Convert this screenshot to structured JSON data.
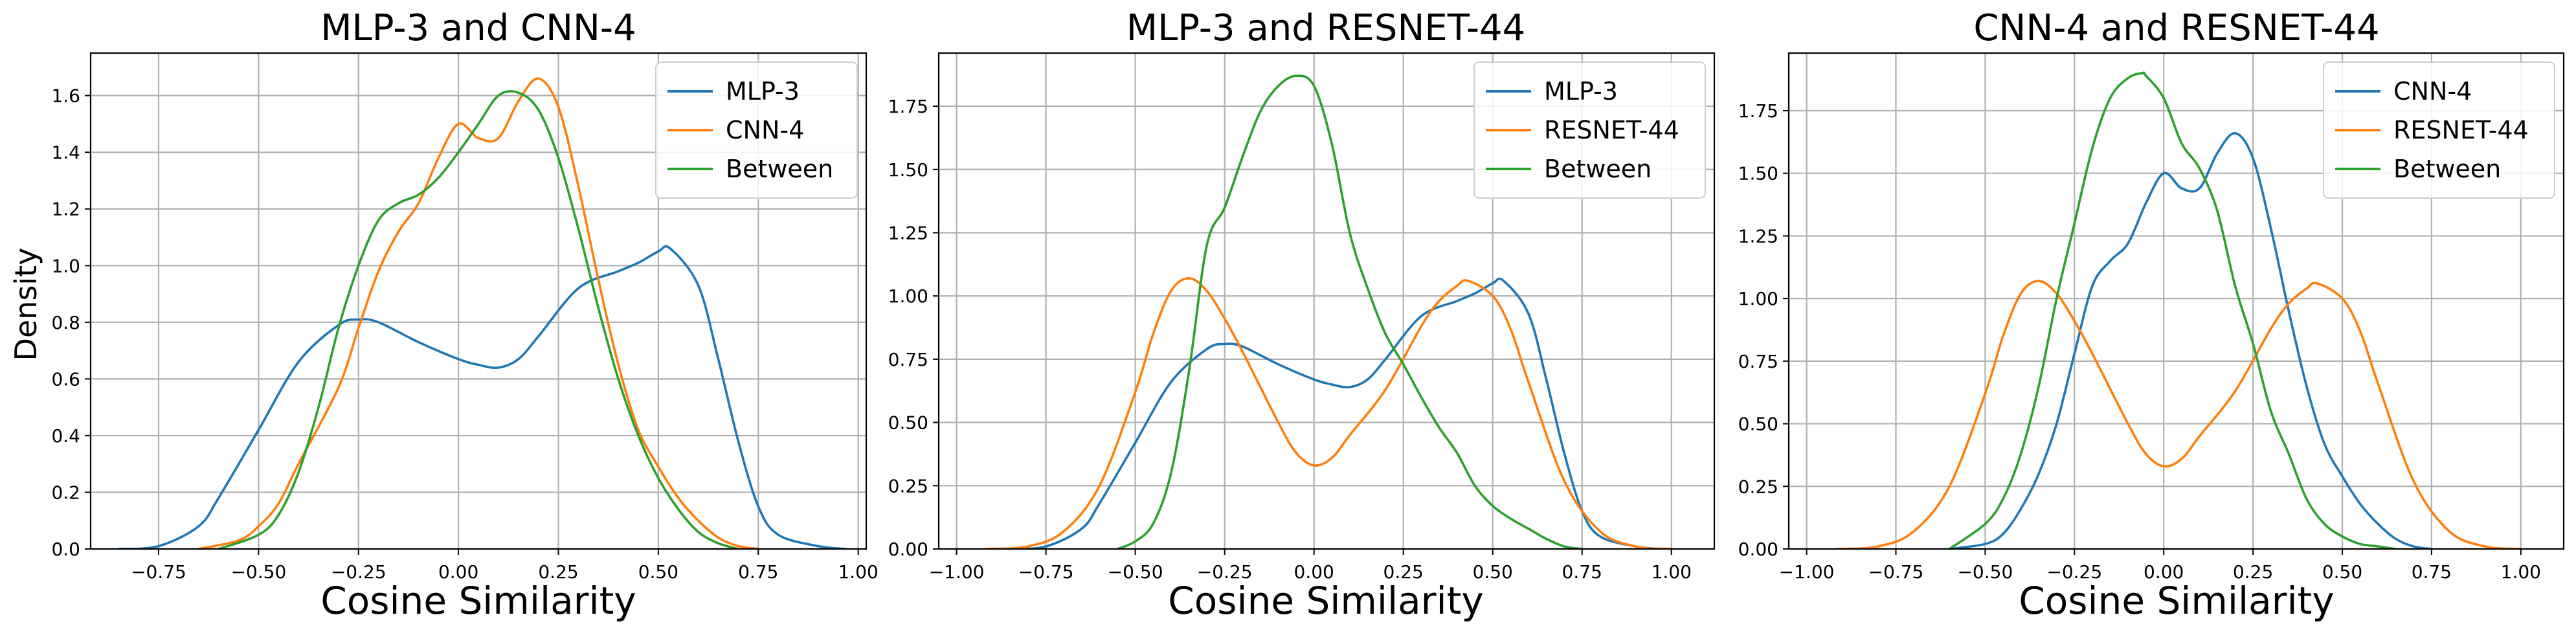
{
  "figure": {
    "ylabel": "Density",
    "xlabel": "Cosine Similarity"
  },
  "colors": {
    "blue": "#1f77b4",
    "orange": "#ff7f0e",
    "green": "#2ca02c",
    "grid": "#b0b0b0"
  },
  "chart_data": [
    {
      "type": "line",
      "title": "MLP-3 and CNN-4",
      "xlabel": "Cosine Similarity",
      "ylabel": "Density",
      "xlim": [
        -0.92,
        1.02
      ],
      "ylim": [
        0,
        1.75
      ],
      "xticks": [
        -0.75,
        -0.5,
        -0.25,
        0.0,
        0.25,
        0.5,
        0.75,
        1.0
      ],
      "xtick_labels": [
        "−0.75",
        "−0.50",
        "−0.25",
        "0.00",
        "0.25",
        "0.50",
        "0.75",
        "1.00"
      ],
      "yticks": [
        0,
        0.2,
        0.4,
        0.6,
        0.8,
        1.0,
        1.2,
        1.4,
        1.6
      ],
      "ytick_labels": [
        "0.0",
        "0.2",
        "0.4",
        "0.6",
        "0.8",
        "1.0",
        "1.2",
        "1.4",
        "1.6"
      ],
      "grid": true,
      "legend": "top-right",
      "series": [
        {
          "name": "MLP-3",
          "color": "#1f77b4",
          "x": [
            -0.85,
            -0.75,
            -0.65,
            -0.6,
            -0.5,
            -0.4,
            -0.3,
            -0.25,
            -0.2,
            -0.1,
            0.0,
            0.05,
            0.1,
            0.15,
            0.2,
            0.3,
            0.4,
            0.45,
            0.5,
            0.53,
            0.6,
            0.65,
            0.7,
            0.75,
            0.8,
            0.9,
            0.97
          ],
          "y": [
            0.0,
            0.01,
            0.08,
            0.18,
            0.42,
            0.66,
            0.79,
            0.81,
            0.8,
            0.73,
            0.67,
            0.65,
            0.64,
            0.67,
            0.75,
            0.92,
            0.98,
            1.01,
            1.05,
            1.06,
            0.93,
            0.67,
            0.38,
            0.15,
            0.05,
            0.01,
            0.0
          ]
        },
        {
          "name": "CNN-4",
          "color": "#ff7f0e",
          "x": [
            -0.65,
            -0.55,
            -0.5,
            -0.45,
            -0.4,
            -0.3,
            -0.25,
            -0.2,
            -0.15,
            -0.1,
            -0.05,
            0.0,
            0.05,
            0.1,
            0.15,
            0.2,
            0.25,
            0.3,
            0.35,
            0.4,
            0.45,
            0.5,
            0.55,
            0.6,
            0.65,
            0.7,
            0.75
          ],
          "y": [
            0.0,
            0.03,
            0.08,
            0.16,
            0.3,
            0.57,
            0.78,
            0.98,
            1.12,
            1.22,
            1.38,
            1.5,
            1.45,
            1.45,
            1.58,
            1.66,
            1.56,
            1.28,
            0.95,
            0.65,
            0.42,
            0.29,
            0.18,
            0.1,
            0.04,
            0.01,
            0.0
          ]
        },
        {
          "name": "Between",
          "color": "#2ca02c",
          "x": [
            -0.6,
            -0.5,
            -0.45,
            -0.4,
            -0.35,
            -0.3,
            -0.25,
            -0.2,
            -0.15,
            -0.1,
            -0.05,
            0.0,
            0.05,
            0.1,
            0.15,
            0.2,
            0.25,
            0.3,
            0.35,
            0.4,
            0.45,
            0.5,
            0.55,
            0.6,
            0.65,
            0.7
          ],
          "y": [
            0.0,
            0.05,
            0.12,
            0.27,
            0.5,
            0.78,
            1.0,
            1.16,
            1.22,
            1.25,
            1.31,
            1.4,
            1.5,
            1.6,
            1.61,
            1.55,
            1.38,
            1.13,
            0.85,
            0.6,
            0.4,
            0.25,
            0.14,
            0.06,
            0.02,
            0.0
          ]
        }
      ]
    },
    {
      "type": "line",
      "title": "MLP-3 and RESNET-44",
      "xlabel": "Cosine Similarity",
      "ylabel": "",
      "xlim": [
        -1.05,
        1.12
      ],
      "ylim": [
        0,
        1.96
      ],
      "xticks": [
        -1.0,
        -0.75,
        -0.5,
        -0.25,
        0.0,
        0.25,
        0.5,
        0.75,
        1.0
      ],
      "xtick_labels": [
        "−1.00",
        "−0.75",
        "−0.50",
        "−0.25",
        "0.00",
        "0.25",
        "0.50",
        "0.75",
        "1.00"
      ],
      "yticks": [
        0,
        0.25,
        0.5,
        0.75,
        1.0,
        1.25,
        1.5,
        1.75
      ],
      "ytick_labels": [
        "0.00",
        "0.25",
        "0.50",
        "0.75",
        "1.00",
        "1.25",
        "1.50",
        "1.75"
      ],
      "grid": true,
      "legend": "top-right",
      "series": [
        {
          "name": "MLP-3",
          "color": "#1f77b4",
          "x": [
            -0.85,
            -0.75,
            -0.65,
            -0.6,
            -0.5,
            -0.4,
            -0.3,
            -0.25,
            -0.2,
            -0.1,
            0.0,
            0.05,
            0.1,
            0.15,
            0.2,
            0.3,
            0.4,
            0.45,
            0.5,
            0.53,
            0.6,
            0.65,
            0.7,
            0.75,
            0.8,
            0.9,
            0.97
          ],
          "y": [
            0.0,
            0.01,
            0.08,
            0.18,
            0.42,
            0.66,
            0.79,
            0.81,
            0.8,
            0.73,
            0.67,
            0.65,
            0.64,
            0.67,
            0.75,
            0.92,
            0.98,
            1.01,
            1.05,
            1.06,
            0.93,
            0.67,
            0.38,
            0.15,
            0.05,
            0.01,
            0.0
          ]
        },
        {
          "name": "RESNET-44",
          "color": "#ff7f0e",
          "x": [
            -0.92,
            -0.8,
            -0.7,
            -0.6,
            -0.5,
            -0.45,
            -0.4,
            -0.35,
            -0.3,
            -0.25,
            -0.2,
            -0.1,
            -0.05,
            0.0,
            0.05,
            0.1,
            0.2,
            0.3,
            0.35,
            0.4,
            0.43,
            0.5,
            0.55,
            0.6,
            0.7,
            0.8,
            0.9,
            1.0
          ],
          "y": [
            0.0,
            0.01,
            0.07,
            0.25,
            0.62,
            0.85,
            1.02,
            1.07,
            1.02,
            0.91,
            0.78,
            0.5,
            0.38,
            0.33,
            0.36,
            0.45,
            0.63,
            0.88,
            0.98,
            1.04,
            1.06,
            1.0,
            0.87,
            0.66,
            0.27,
            0.07,
            0.01,
            0.0
          ]
        },
        {
          "name": "Between",
          "color": "#2ca02c",
          "x": [
            -0.55,
            -0.5,
            -0.45,
            -0.4,
            -0.35,
            -0.3,
            -0.25,
            -0.2,
            -0.15,
            -0.1,
            -0.05,
            0.0,
            0.05,
            0.1,
            0.15,
            0.2,
            0.25,
            0.3,
            0.35,
            0.4,
            0.45,
            0.5,
            0.55,
            0.6,
            0.65,
            0.7,
            0.75
          ],
          "y": [
            0.0,
            0.03,
            0.1,
            0.3,
            0.7,
            1.2,
            1.35,
            1.55,
            1.73,
            1.83,
            1.87,
            1.83,
            1.6,
            1.25,
            1.03,
            0.85,
            0.73,
            0.6,
            0.48,
            0.38,
            0.25,
            0.17,
            0.12,
            0.08,
            0.04,
            0.01,
            0.0
          ]
        }
      ]
    },
    {
      "type": "line",
      "title": "CNN-4 and RESNET-44",
      "xlabel": "Cosine Similarity",
      "ylabel": "",
      "xlim": [
        -1.05,
        1.12
      ],
      "ylim": [
        0,
        1.98
      ],
      "xticks": [
        -1.0,
        -0.75,
        -0.5,
        -0.25,
        0.0,
        0.25,
        0.5,
        0.75,
        1.0
      ],
      "xtick_labels": [
        "−1.00",
        "−0.75",
        "−0.50",
        "−0.25",
        "0.00",
        "0.25",
        "0.50",
        "0.75",
        "1.00"
      ],
      "yticks": [
        0,
        0.25,
        0.5,
        0.75,
        1.0,
        1.25,
        1.5,
        1.75
      ],
      "ytick_labels": [
        "0.00",
        "0.25",
        "0.50",
        "0.75",
        "1.00",
        "1.25",
        "1.50",
        "1.75"
      ],
      "grid": true,
      "legend": "top-right",
      "series": [
        {
          "name": "CNN-4",
          "color": "#1f77b4",
          "x": [
            -0.6,
            -0.5,
            -0.45,
            -0.4,
            -0.35,
            -0.3,
            -0.25,
            -0.2,
            -0.15,
            -0.1,
            -0.05,
            0.0,
            0.05,
            0.1,
            0.15,
            0.2,
            0.25,
            0.3,
            0.35,
            0.4,
            0.45,
            0.5,
            0.55,
            0.6,
            0.65,
            0.7,
            0.75
          ],
          "y": [
            0.0,
            0.02,
            0.06,
            0.16,
            0.3,
            0.5,
            0.78,
            1.05,
            1.15,
            1.22,
            1.38,
            1.5,
            1.44,
            1.44,
            1.58,
            1.66,
            1.56,
            1.28,
            0.95,
            0.65,
            0.42,
            0.29,
            0.18,
            0.1,
            0.04,
            0.01,
            0.0
          ]
        },
        {
          "name": "RESNET-44",
          "color": "#ff7f0e",
          "x": [
            -0.92,
            -0.8,
            -0.7,
            -0.6,
            -0.5,
            -0.45,
            -0.4,
            -0.35,
            -0.3,
            -0.25,
            -0.2,
            -0.1,
            -0.05,
            0.0,
            0.05,
            0.1,
            0.2,
            0.3,
            0.35,
            0.4,
            0.43,
            0.5,
            0.55,
            0.6,
            0.7,
            0.8,
            0.9,
            1.0
          ],
          "y": [
            0.0,
            0.01,
            0.07,
            0.25,
            0.62,
            0.85,
            1.02,
            1.07,
            1.02,
            0.91,
            0.78,
            0.5,
            0.38,
            0.33,
            0.36,
            0.45,
            0.63,
            0.88,
            0.98,
            1.04,
            1.06,
            1.0,
            0.87,
            0.66,
            0.27,
            0.07,
            0.01,
            0.0
          ]
        },
        {
          "name": "Between",
          "color": "#2ca02c",
          "x": [
            -0.6,
            -0.5,
            -0.45,
            -0.4,
            -0.35,
            -0.3,
            -0.25,
            -0.2,
            -0.15,
            -0.1,
            -0.06,
            -0.05,
            0.0,
            0.05,
            0.1,
            0.15,
            0.2,
            0.25,
            0.3,
            0.35,
            0.4,
            0.45,
            0.5,
            0.55,
            0.6,
            0.65
          ],
          "y": [
            0.0,
            0.1,
            0.2,
            0.38,
            0.65,
            1.0,
            1.3,
            1.6,
            1.8,
            1.88,
            1.9,
            1.89,
            1.8,
            1.62,
            1.52,
            1.35,
            1.05,
            0.82,
            0.55,
            0.38,
            0.2,
            0.1,
            0.05,
            0.02,
            0.01,
            0.0
          ]
        }
      ]
    }
  ]
}
